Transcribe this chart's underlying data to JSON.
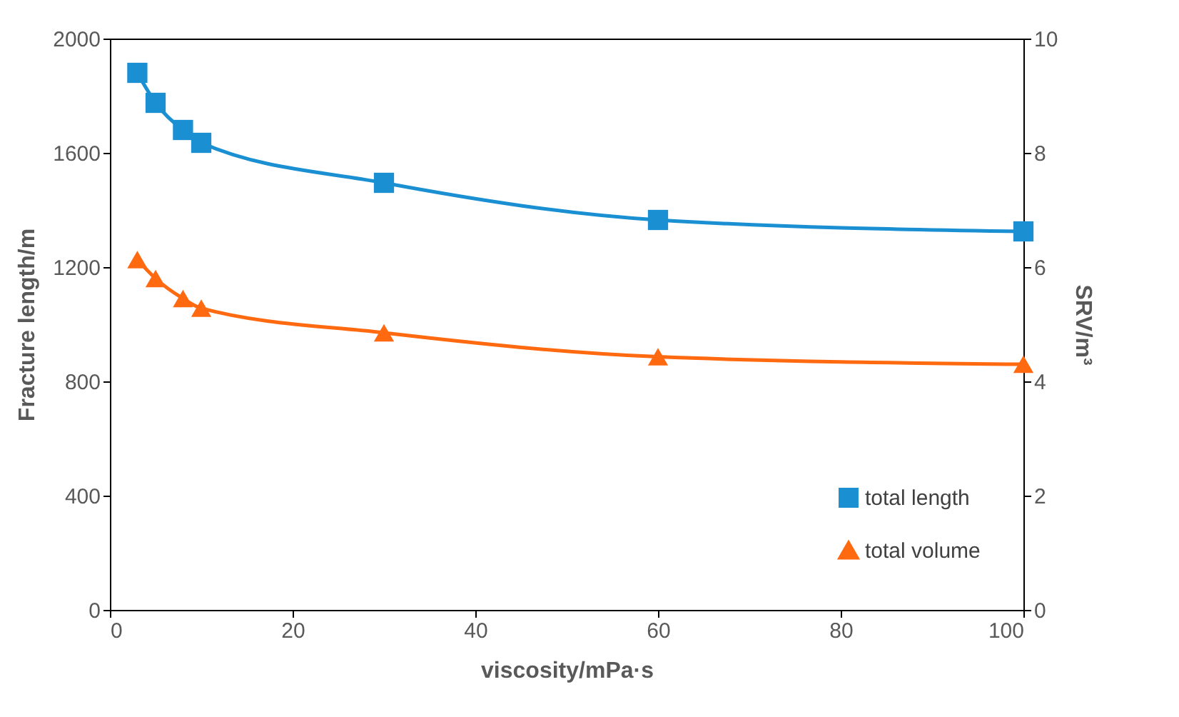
{
  "chart_data": {
    "type": "line",
    "xlabel": "viscosity/mPa·s",
    "ylabel": "Fracture length/m",
    "y2label": "SRV/m³",
    "x": [
      3,
      5,
      8,
      10,
      30,
      60,
      100
    ],
    "series": [
      {
        "name": "total length",
        "color": "#1a8fd2",
        "marker": "square",
        "values": [
          1880,
          1775,
          1680,
          1635,
          1495,
          1365,
          1325
        ]
      },
      {
        "name": "total volume",
        "color": "#ff6a10",
        "marker": "triangle",
        "axis": "y2",
        "values": [
          6.13,
          5.8,
          5.45,
          5.28,
          4.85,
          4.43,
          4.3
        ]
      }
    ],
    "xlim": [
      0,
      100
    ],
    "xticks": [
      0,
      20,
      40,
      60,
      80,
      100
    ],
    "ylim": [
      0,
      2000
    ],
    "yticks": [
      0,
      400,
      800,
      1200,
      1600,
      2000
    ],
    "y2lim": [
      0,
      10
    ],
    "y2ticks": [
      0,
      2,
      4,
      6,
      8,
      10
    ],
    "grid": false,
    "legend": "bottom right",
    "line_style": "solid"
  }
}
